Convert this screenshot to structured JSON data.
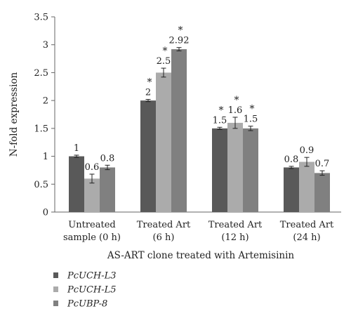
{
  "chart_data": {
    "type": "bar",
    "title": "",
    "xlabel": "AS-ART clone treated with Artemisinin",
    "ylabel": "N-fold expression",
    "ylim": [
      0,
      3.5
    ],
    "yticks": [
      "0",
      "0.5",
      "1",
      "1.5",
      "2",
      "2.5",
      "3",
      "3.5"
    ],
    "grid": false,
    "legend_position": "bottom-left",
    "categories": [
      [
        "Untreated",
        "sample (0 h)"
      ],
      [
        "Treated Art",
        "(6 h)"
      ],
      [
        "Treated Art",
        "(12 h)"
      ],
      [
        "Treated Art",
        "(24 h)"
      ]
    ],
    "series": [
      {
        "name": "PcUCH-L3",
        "color": "#595959",
        "values": [
          1.0,
          2.0,
          1.5,
          0.8
        ],
        "errors": [
          0.02,
          0.02,
          0.02,
          0.02
        ],
        "labels": [
          "1",
          "2",
          "1.5",
          "0.8"
        ],
        "significant": [
          false,
          true,
          true,
          false
        ]
      },
      {
        "name": "PcUCH-L5",
        "color": "#ababab",
        "values": [
          0.6,
          2.5,
          1.6,
          0.9
        ],
        "errors": [
          0.08,
          0.08,
          0.1,
          0.08
        ],
        "labels": [
          "0.6",
          "2.5",
          "1.6",
          "0.9"
        ],
        "significant": [
          false,
          true,
          true,
          false
        ]
      },
      {
        "name": "PcUBP-8",
        "color": "#808080",
        "values": [
          0.8,
          2.92,
          1.5,
          0.7
        ],
        "errors": [
          0.04,
          0.03,
          0.04,
          0.04
        ],
        "labels": [
          "0.8",
          "2.92",
          "1.5",
          "0.7"
        ],
        "significant": [
          false,
          true,
          true,
          false
        ]
      }
    ],
    "significance_marker": "*"
  }
}
